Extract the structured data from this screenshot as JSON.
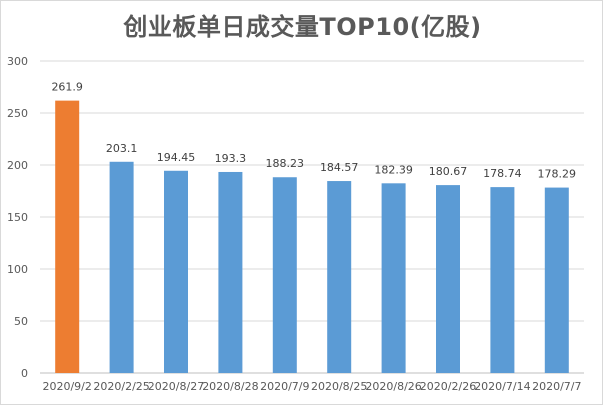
{
  "chart_data": {
    "type": "bar",
    "title": "创业板单日成交量TOP10(亿股)",
    "xlabel": "",
    "ylabel": "",
    "categories": [
      "2020/9/2",
      "2020/2/25",
      "2020/8/27",
      "2020/8/28",
      "2020/7/9",
      "2020/8/25",
      "2020/8/26",
      "2020/2/26",
      "2020/7/14",
      "2020/7/7"
    ],
    "values": [
      261.9,
      203.1,
      194.45,
      193.3,
      188.23,
      184.57,
      182.39,
      180.67,
      178.74,
      178.29
    ],
    "value_labels": [
      "261.9",
      "203.1",
      "194.45",
      "193.3",
      "188.23",
      "184.57",
      "182.39",
      "180.67",
      "178.74",
      "178.29"
    ],
    "ylim": [
      0,
      300
    ],
    "yticks": [
      "0",
      "50",
      "100",
      "150",
      "200",
      "250",
      "300"
    ],
    "grid": true,
    "legend": "none",
    "colors": {
      "highlight": "#ed7d31",
      "default": "#5b9bd5",
      "grid": "#d9d9d9",
      "axis": "#bfbfbf"
    },
    "highlight_index": 0
  }
}
